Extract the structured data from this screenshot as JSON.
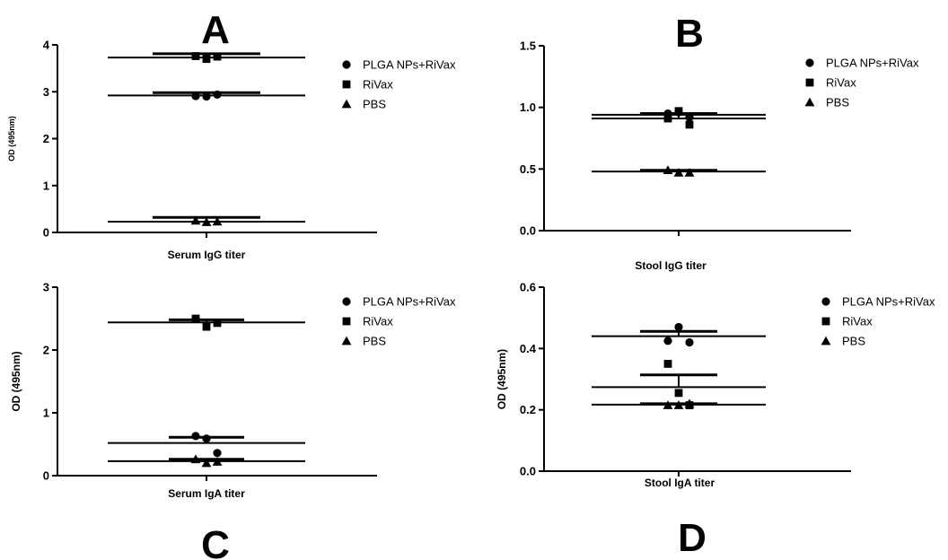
{
  "figure": {
    "panel_labels": [
      "A",
      "B",
      "C",
      "D"
    ]
  },
  "chart_data": [
    {
      "panel": "A",
      "type": "scatter",
      "title": "",
      "xlabel": "Serum IgG titer",
      "ylabel": "OD (495nm)",
      "ylim": [
        0,
        4
      ],
      "yticks": [
        0,
        1,
        2,
        3,
        4
      ],
      "yticklabels": [
        "0",
        "1",
        "2",
        "3",
        "4"
      ],
      "grid": false,
      "legend_position": "top-right",
      "series": [
        {
          "name": "PLGA NPs+RiVax",
          "marker": "circle",
          "values": [
            2.91,
            2.9,
            2.94
          ],
          "mean": 2.92,
          "sem": 0.06
        },
        {
          "name": "RiVax",
          "marker": "square",
          "values": [
            3.76,
            3.7,
            3.75
          ],
          "mean": 3.73,
          "sem": 0.08
        },
        {
          "name": "PBS",
          "marker": "triangle",
          "values": [
            0.25,
            0.22,
            0.23
          ],
          "mean": 0.23,
          "sem": 0.09
        }
      ]
    },
    {
      "panel": "B",
      "type": "scatter",
      "title": "",
      "xlabel": "Stool IgG titer",
      "ylabel": "",
      "ylim": [
        0,
        1.5
      ],
      "yticks": [
        0,
        0.5,
        1.0,
        1.5
      ],
      "yticklabels": [
        "0.0",
        "0.5",
        "1.0",
        "1.5"
      ],
      "grid": false,
      "legend_position": "top-right",
      "series": [
        {
          "name": "PLGA NPs+RiVax",
          "marker": "circle",
          "values": [
            0.95,
            0.96,
            0.92
          ],
          "mean": 0.94,
          "sem": 0.01
        },
        {
          "name": "RiVax",
          "marker": "square",
          "values": [
            0.91,
            0.97,
            0.86
          ],
          "mean": 0.91,
          "sem": 0.04
        },
        {
          "name": "PBS",
          "marker": "triangle",
          "values": [
            0.49,
            0.47,
            0.47
          ],
          "mean": 0.48,
          "sem": 0.01
        }
      ]
    },
    {
      "panel": "C",
      "type": "scatter",
      "title": "",
      "xlabel": "Serum IgA titer",
      "ylabel": "OD (495nm)",
      "ylim": [
        0,
        3
      ],
      "yticks": [
        0,
        1,
        2,
        3
      ],
      "yticklabels": [
        "0",
        "1",
        "2",
        "3"
      ],
      "grid": false,
      "legend_position": "top-right",
      "series": [
        {
          "name": "PLGA NPs+RiVax",
          "marker": "circle",
          "values": [
            0.63,
            0.59,
            0.36
          ],
          "mean": 0.52,
          "sem": 0.09
        },
        {
          "name": "RiVax",
          "marker": "square",
          "values": [
            2.5,
            2.37,
            2.43
          ],
          "mean": 2.44,
          "sem": 0.04
        },
        {
          "name": "PBS",
          "marker": "triangle",
          "values": [
            0.26,
            0.2,
            0.22
          ],
          "mean": 0.23,
          "sem": 0.03
        }
      ]
    },
    {
      "panel": "D",
      "type": "scatter",
      "title": "",
      "xlabel": "Stool IgA titer",
      "ylabel": "OD (495nm)",
      "ylim": [
        0,
        0.6
      ],
      "yticks": [
        0,
        0.2,
        0.4,
        0.6
      ],
      "yticklabels": [
        "0.0",
        "0.2",
        "0.4",
        "0.6"
      ],
      "grid": false,
      "legend_position": "top-right",
      "series": [
        {
          "name": "PLGA NPs+RiVax",
          "marker": "circle",
          "values": [
            0.425,
            0.47,
            0.42
          ],
          "mean": 0.44,
          "sem": 0.016
        },
        {
          "name": "RiVax",
          "marker": "square",
          "values": [
            0.35,
            0.255,
            0.215
          ],
          "mean": 0.274,
          "sem": 0.04
        },
        {
          "name": "PBS",
          "marker": "triangle",
          "values": [
            0.215,
            0.215,
            0.22
          ],
          "mean": 0.217,
          "sem": 0.003
        }
      ]
    }
  ]
}
